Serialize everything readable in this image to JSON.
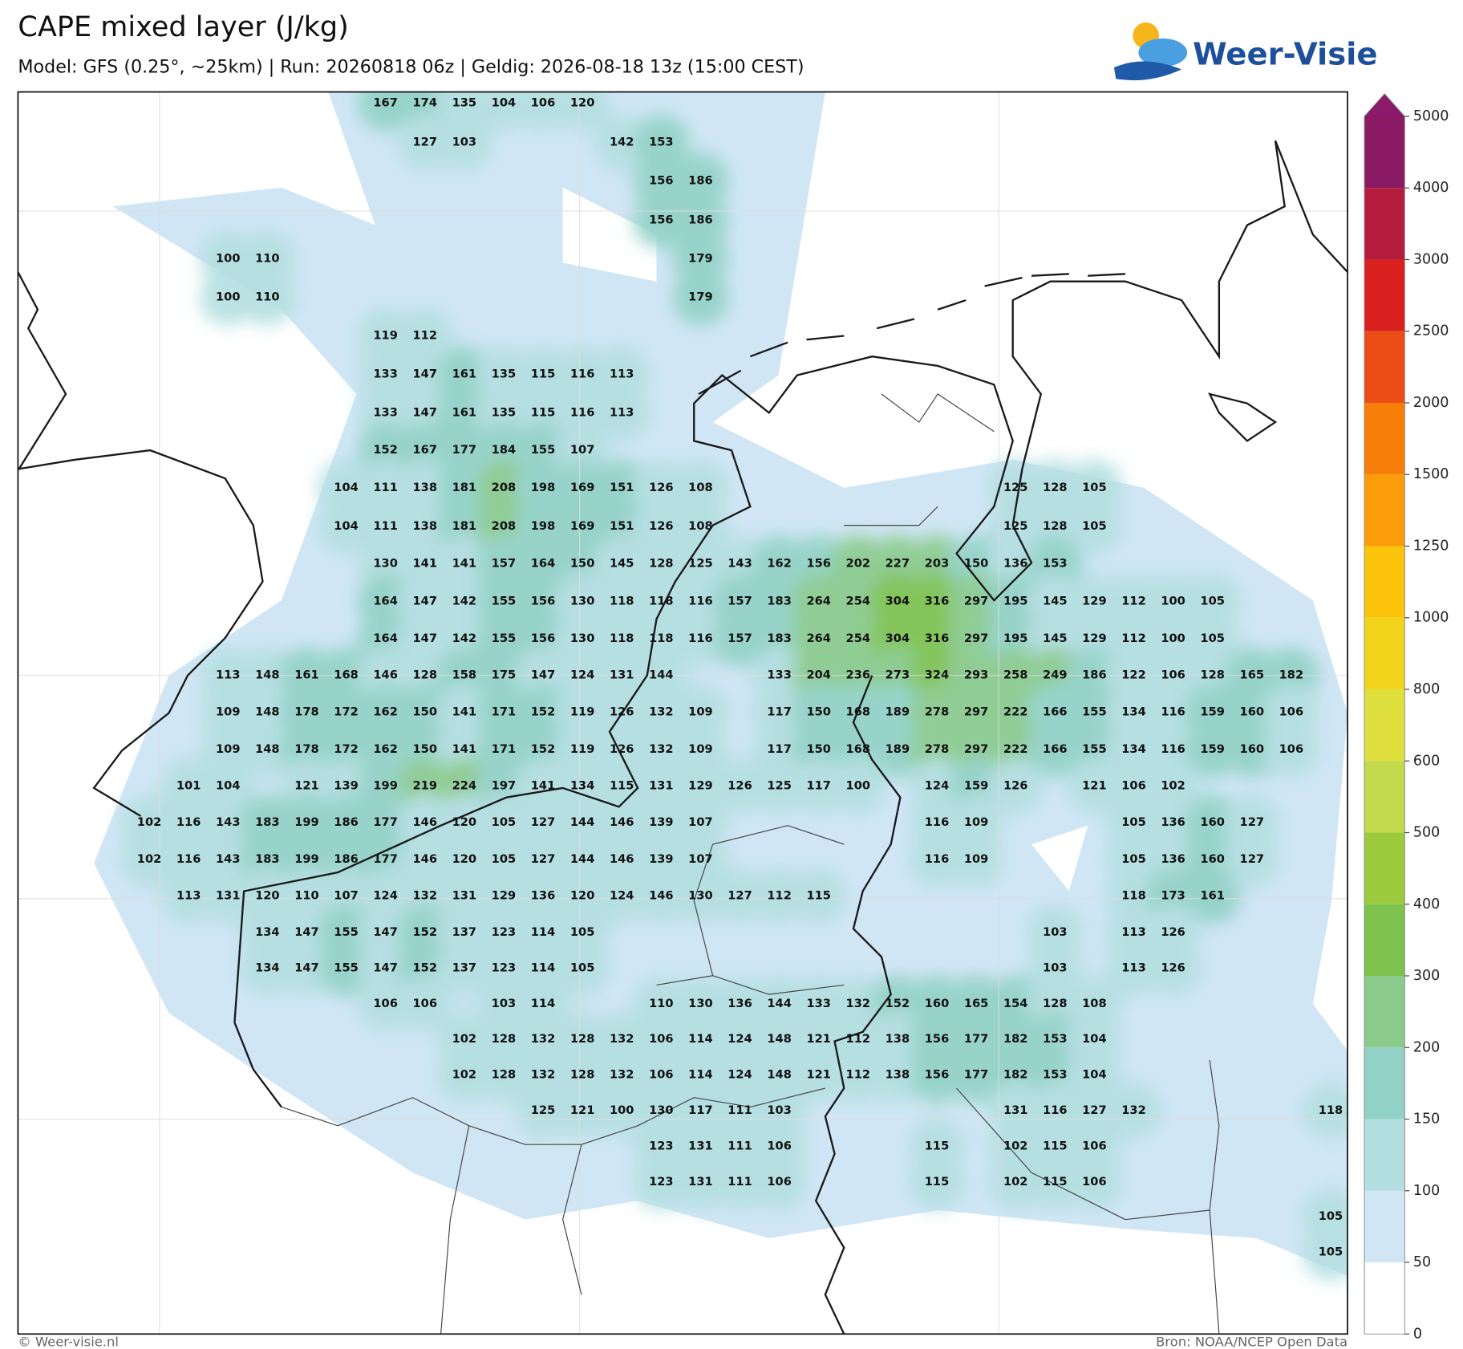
{
  "header": {
    "title": "CAPE mixed layer (J/kg)",
    "subtitle": "Model: GFS (0.25°, ~25km)  |  Run: 20260818 06z  |  Geldig: 2026-08-18 13z (15:00 CEST)",
    "logo": "Weer-Visie"
  },
  "map": {
    "rows": [
      [
        null,
        null,
        null,
        null,
        null,
        null,
        167,
        174,
        135,
        104,
        106,
        120,
        null,
        null,
        null,
        null,
        null,
        null,
        null,
        null,
        null,
        null,
        null,
        null,
        null,
        null,
        null,
        null,
        null,
        null,
        null
      ],
      [
        null,
        null,
        null,
        null,
        null,
        null,
        null,
        127,
        103,
        null,
        null,
        null,
        142,
        153,
        null,
        null,
        null,
        null,
        null,
        null,
        null,
        null,
        null,
        null,
        null,
        null,
        null,
        null,
        null,
        null,
        null
      ],
      [
        null,
        null,
        null,
        null,
        null,
        null,
        null,
        null,
        null,
        null,
        null,
        null,
        null,
        156,
        186,
        null,
        null,
        null,
        null,
        null,
        null,
        null,
        null,
        null,
        null,
        null,
        null,
        null,
        null,
        null,
        null
      ],
      [
        null,
        null,
        null,
        null,
        null,
        null,
        null,
        null,
        null,
        null,
        null,
        null,
        null,
        156,
        186,
        null,
        null,
        null,
        null,
        null,
        null,
        null,
        null,
        null,
        null,
        null,
        null,
        null,
        null,
        null,
        null
      ],
      [
        null,
        null,
        100,
        110,
        null,
        null,
        null,
        null,
        null,
        null,
        null,
        null,
        null,
        null,
        179,
        null,
        null,
        null,
        null,
        null,
        null,
        null,
        null,
        null,
        null,
        null,
        null,
        null,
        null,
        null,
        null
      ],
      [
        null,
        null,
        100,
        110,
        null,
        null,
        null,
        null,
        null,
        null,
        null,
        null,
        null,
        null,
        179,
        null,
        null,
        null,
        null,
        null,
        null,
        null,
        null,
        null,
        null,
        null,
        null,
        null,
        null,
        null,
        null
      ],
      [
        null,
        null,
        null,
        null,
        null,
        null,
        119,
        112,
        null,
        null,
        null,
        null,
        null,
        null,
        null,
        null,
        null,
        null,
        null,
        null,
        null,
        null,
        null,
        null,
        null,
        null,
        null,
        null,
        null,
        null,
        null
      ],
      [
        null,
        null,
        null,
        null,
        null,
        null,
        133,
        147,
        161,
        135,
        115,
        116,
        113,
        null,
        null,
        null,
        null,
        null,
        null,
        null,
        null,
        null,
        null,
        null,
        null,
        null,
        null,
        null,
        null,
        null,
        null
      ],
      [
        null,
        null,
        null,
        null,
        null,
        null,
        133,
        147,
        161,
        135,
        115,
        116,
        113,
        null,
        null,
        null,
        null,
        null,
        null,
        null,
        null,
        null,
        null,
        null,
        null,
        null,
        null,
        null,
        null,
        null,
        null
      ],
      [
        null,
        null,
        null,
        null,
        null,
        null,
        152,
        167,
        177,
        184,
        155,
        107,
        null,
        null,
        null,
        null,
        null,
        null,
        null,
        null,
        null,
        null,
        null,
        null,
        null,
        null,
        null,
        null,
        null,
        null,
        null
      ],
      [
        null,
        null,
        null,
        null,
        null,
        104,
        111,
        138,
        181,
        208,
        198,
        169,
        151,
        126,
        108,
        null,
        null,
        null,
        null,
        null,
        null,
        null,
        125,
        128,
        105,
        null,
        null,
        null,
        null,
        null,
        null
      ],
      [
        null,
        null,
        null,
        null,
        null,
        104,
        111,
        138,
        181,
        208,
        198,
        169,
        151,
        126,
        108,
        null,
        null,
        null,
        null,
        null,
        null,
        null,
        125,
        128,
        105,
        null,
        null,
        null,
        null,
        null,
        null
      ],
      [
        null,
        null,
        null,
        null,
        null,
        null,
        130,
        141,
        141,
        157,
        164,
        150,
        145,
        128,
        125,
        143,
        162,
        156,
        202,
        227,
        203,
        150,
        136,
        153,
        null,
        null,
        null,
        null,
        null,
        null,
        null
      ],
      [
        null,
        null,
        null,
        null,
        null,
        null,
        164,
        147,
        142,
        155,
        156,
        130,
        118,
        118,
        116,
        157,
        183,
        264,
        254,
        304,
        316,
        297,
        195,
        145,
        129,
        112,
        100,
        105,
        null,
        null,
        null
      ],
      [
        null,
        null,
        null,
        null,
        null,
        null,
        164,
        147,
        142,
        155,
        156,
        130,
        118,
        118,
        116,
        157,
        183,
        264,
        254,
        304,
        316,
        297,
        195,
        145,
        129,
        112,
        100,
        105,
        null,
        null,
        null
      ],
      [
        null,
        null,
        113,
        148,
        161,
        168,
        146,
        128,
        158,
        175,
        147,
        124,
        131,
        144,
        null,
        null,
        133,
        204,
        236,
        273,
        324,
        293,
        258,
        249,
        186,
        122,
        106,
        128,
        165,
        182,
        null
      ],
      [
        null,
        null,
        109,
        148,
        178,
        172,
        162,
        150,
        141,
        171,
        152,
        119,
        126,
        132,
        109,
        null,
        117,
        150,
        168,
        189,
        278,
        297,
        222,
        166,
        155,
        134,
        116,
        159,
        160,
        106,
        null
      ],
      [
        null,
        null,
        109,
        148,
        178,
        172,
        162,
        150,
        141,
        171,
        152,
        119,
        126,
        132,
        109,
        null,
        117,
        150,
        168,
        189,
        278,
        297,
        222,
        166,
        155,
        134,
        116,
        159,
        160,
        106,
        null
      ],
      [
        null,
        101,
        104,
        null,
        121,
        139,
        199,
        219,
        224,
        197,
        141,
        134,
        115,
        131,
        129,
        126,
        125,
        117,
        100,
        null,
        124,
        159,
        126,
        null,
        121,
        106,
        102,
        null,
        null,
        null,
        null
      ],
      [
        102,
        116,
        143,
        183,
        199,
        186,
        177,
        146,
        120,
        105,
        127,
        144,
        146,
        139,
        107,
        null,
        null,
        null,
        null,
        null,
        116,
        109,
        null,
        null,
        null,
        105,
        136,
        160,
        127,
        null,
        null
      ],
      [
        102,
        116,
        143,
        183,
        199,
        186,
        177,
        146,
        120,
        105,
        127,
        144,
        146,
        139,
        107,
        null,
        null,
        null,
        null,
        null,
        116,
        109,
        null,
        null,
        null,
        105,
        136,
        160,
        127,
        null,
        null
      ],
      [
        null,
        113,
        131,
        120,
        110,
        107,
        124,
        132,
        131,
        129,
        136,
        120,
        124,
        146,
        130,
        127,
        112,
        115,
        null,
        null,
        null,
        null,
        null,
        null,
        null,
        118,
        173,
        161,
        null,
        null,
        null
      ],
      [
        null,
        null,
        null,
        134,
        147,
        155,
        147,
        152,
        137,
        123,
        114,
        105,
        null,
        null,
        null,
        null,
        null,
        null,
        null,
        null,
        null,
        null,
        null,
        103,
        null,
        113,
        126,
        null,
        null,
        null,
        null
      ],
      [
        null,
        null,
        null,
        134,
        147,
        155,
        147,
        152,
        137,
        123,
        114,
        105,
        null,
        null,
        null,
        null,
        null,
        null,
        null,
        null,
        null,
        null,
        null,
        103,
        null,
        113,
        126,
        null,
        null,
        null,
        null
      ],
      [
        null,
        null,
        null,
        null,
        null,
        null,
        106,
        106,
        null,
        103,
        114,
        null,
        null,
        110,
        130,
        136,
        144,
        133,
        132,
        152,
        160,
        165,
        154,
        128,
        108,
        null,
        null,
        null,
        null,
        null,
        null
      ],
      [
        null,
        null,
        null,
        null,
        null,
        null,
        null,
        null,
        102,
        128,
        132,
        128,
        132,
        106,
        114,
        124,
        148,
        121,
        112,
        138,
        156,
        177,
        182,
        153,
        104,
        null,
        null,
        null,
        null,
        null,
        null
      ],
      [
        null,
        null,
        null,
        null,
        null,
        null,
        null,
        null,
        102,
        128,
        132,
        128,
        132,
        106,
        114,
        124,
        148,
        121,
        112,
        138,
        156,
        177,
        182,
        153,
        104,
        null,
        null,
        null,
        null,
        null,
        null
      ],
      [
        null,
        null,
        null,
        null,
        null,
        null,
        null,
        null,
        null,
        null,
        125,
        121,
        100,
        130,
        117,
        111,
        103,
        null,
        null,
        null,
        null,
        null,
        131,
        116,
        127,
        132,
        null,
        null,
        null,
        null,
        118
      ],
      [
        null,
        null,
        null,
        null,
        null,
        null,
        null,
        null,
        null,
        null,
        null,
        null,
        null,
        123,
        131,
        111,
        106,
        null,
        null,
        null,
        115,
        null,
        102,
        115,
        106,
        null,
        null,
        null,
        null,
        null,
        null
      ],
      [
        null,
        null,
        null,
        null,
        null,
        null,
        null,
        null,
        null,
        null,
        null,
        null,
        null,
        123,
        131,
        111,
        106,
        null,
        null,
        null,
        115,
        null,
        102,
        115,
        106,
        null,
        null,
        null,
        null,
        null,
        null
      ],
      [
        null,
        null,
        null,
        null,
        null,
        null,
        null,
        null,
        null,
        null,
        null,
        null,
        null,
        null,
        null,
        null,
        null,
        null,
        null,
        null,
        null,
        null,
        null,
        null,
        null,
        null,
        null,
        null,
        null,
        null,
        105
      ],
      [
        null,
        null,
        null,
        null,
        null,
        null,
        null,
        null,
        null,
        null,
        null,
        null,
        null,
        null,
        null,
        null,
        null,
        null,
        null,
        null,
        null,
        null,
        null,
        null,
        null,
        null,
        null,
        null,
        null,
        null,
        105
      ]
    ]
  },
  "colorbar": {
    "levels": [
      0,
      50,
      100,
      150,
      200,
      300,
      400,
      500,
      600,
      800,
      1000,
      1250,
      1500,
      2000,
      2500,
      3000,
      4000,
      5000
    ],
    "colors": [
      "#ffffff",
      "#d0e6f5",
      "#b4dfe0",
      "#92d2c6",
      "#8acb8b",
      "#7cc24c",
      "#9bcb3d",
      "#c2d94b",
      "#dfe03d",
      "#f2d31c",
      "#fcc40a",
      "#fb9c0b",
      "#f67e09",
      "#ea4d15",
      "#da1f1f",
      "#b31c3c",
      "#8b1a64"
    ],
    "extend_color": "#8b1a6a"
  },
  "footer": {
    "left": "© Weer-visie.nl",
    "right": "Bron: NOAA/NCEP Open Data"
  }
}
